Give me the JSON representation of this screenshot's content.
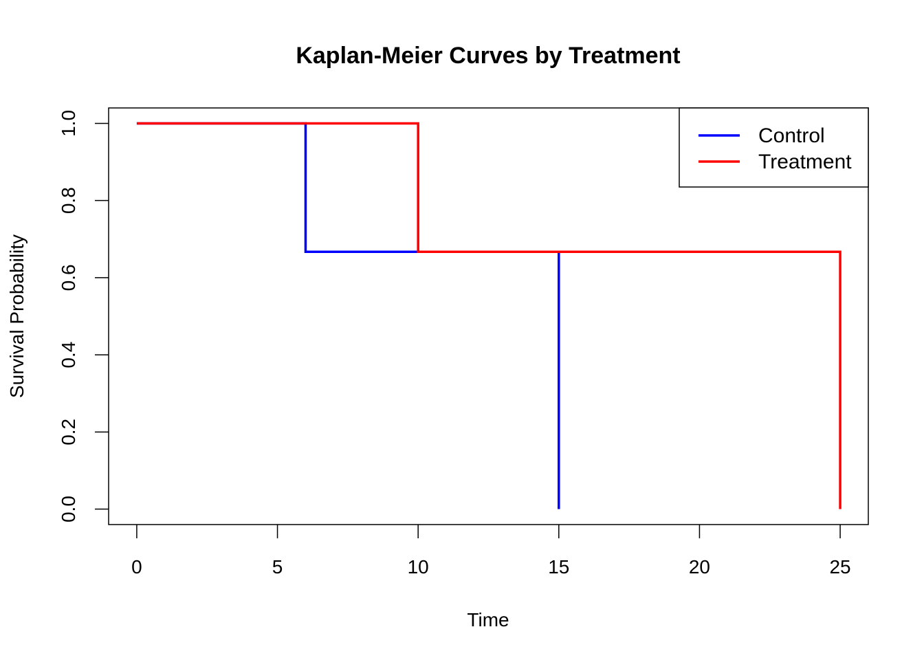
{
  "chart_data": {
    "type": "line",
    "step": true,
    "title": "Kaplan-Meier Curves by Treatment",
    "xlabel": "Time",
    "ylabel": "Survival Probability",
    "xlim": [
      -1,
      26
    ],
    "ylim": [
      -0.04,
      1.04
    ],
    "x_ticks": [
      0,
      5,
      10,
      15,
      20,
      25
    ],
    "x_tick_labels": [
      "0",
      "5",
      "10",
      "15",
      "20",
      "25"
    ],
    "y_ticks": [
      0.0,
      0.2,
      0.4,
      0.6,
      0.8,
      1.0
    ],
    "y_tick_labels": [
      "0.0",
      "0.2",
      "0.4",
      "0.6",
      "0.8",
      "1.0"
    ],
    "grid": false,
    "legend_position": "top-right",
    "series": [
      {
        "name": "Control",
        "color": "#0000ff",
        "x": [
          0,
          6,
          15
        ],
        "y": [
          1.0,
          0.667,
          0.0
        ]
      },
      {
        "name": "Treatment",
        "color": "#ff0000",
        "x": [
          0,
          10,
          25
        ],
        "y": [
          1.0,
          0.667,
          0.0
        ]
      }
    ]
  }
}
